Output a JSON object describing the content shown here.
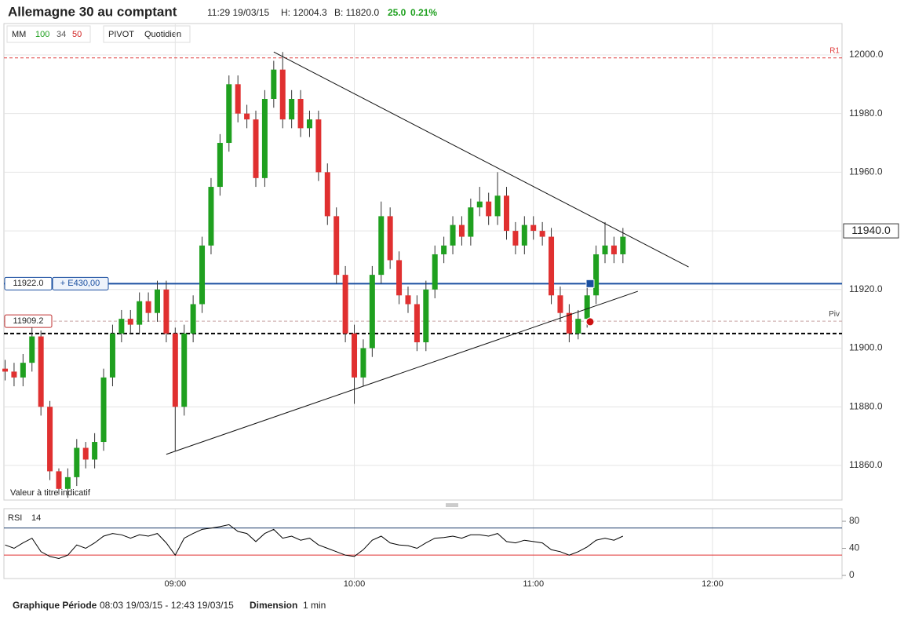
{
  "header": {
    "title": "Allemagne 30 au comptant",
    "time": "11:29 19/03/15",
    "high": "H: 12004.3",
    "bid": "B: 11820.0",
    "change": "25.0",
    "change_pct": "0.21%",
    "change_color": "#1fa01f"
  },
  "legend": {
    "mm": "MM",
    "mm_periods": [
      {
        "text": "100",
        "color": "#1fa01f"
      },
      {
        "text": "34",
        "color": "#555555"
      },
      {
        "text": "50",
        "color": "#d02020"
      }
    ],
    "pivot": "PIVOT",
    "pivot_period": "Quotidien"
  },
  "note": "Valeur à titre indicatif",
  "footer": {
    "period_label": "Graphique Période",
    "period": "08:03 19/03/15 - 12:43 19/03/15",
    "dimension_label": "Dimension",
    "dimension": "1 min"
  },
  "chart_data": [
    {
      "type": "candlestick",
      "up_color": "#1fa01f",
      "down_color": "#e03030",
      "x": [
        483,
        486,
        489,
        492,
        495,
        498,
        501,
        504,
        507,
        510,
        513,
        516,
        519,
        522,
        525,
        528,
        531,
        534,
        537,
        540,
        543,
        546,
        549,
        552,
        555,
        558,
        561,
        564,
        567,
        570,
        573,
        576,
        579,
        582,
        585,
        588,
        591,
        594,
        597,
        600,
        603,
        606,
        609,
        612,
        615,
        618,
        621,
        624,
        627,
        630,
        633,
        636,
        639,
        642,
        645,
        648,
        651,
        654,
        657,
        660,
        663,
        666,
        669,
        672,
        675,
        678,
        681,
        684,
        687,
        690
      ],
      "open": [
        11893,
        11892,
        11890,
        11895,
        11904,
        11880,
        11858,
        11852,
        11856,
        11866,
        11862,
        11868,
        11890,
        11905,
        11910,
        11908,
        11916,
        11912,
        11920,
        11905,
        11880,
        11905,
        11915,
        11935,
        11955,
        11970,
        11990,
        11980,
        11978,
        11958,
        11985,
        11995,
        11978,
        11985,
        11975,
        11978,
        11960,
        11945,
        11925,
        11905,
        11890,
        11900,
        11925,
        11945,
        11930,
        11918,
        11915,
        11902,
        11920,
        11932,
        11935,
        11942,
        11938,
        11948,
        11950,
        11945,
        11952,
        11940,
        11935,
        11942,
        11940,
        11938,
        11918,
        11912,
        11905,
        11910,
        11918,
        11932,
        11935,
        11932
      ],
      "high": [
        11896,
        11895,
        11898,
        11907,
        11906,
        11882,
        11859,
        11859,
        11869,
        11868,
        11871,
        11893,
        11908,
        11913,
        11913,
        11919,
        11919,
        11923,
        11923,
        11907,
        11908,
        11918,
        11938,
        11958,
        11973,
        11993,
        11993,
        11983,
        11981,
        11988,
        11998,
        12001,
        11988,
        11988,
        11981,
        11981,
        11963,
        11948,
        11928,
        11908,
        11903,
        11928,
        11950,
        11948,
        11933,
        11921,
        11918,
        11923,
        11935,
        11938,
        11945,
        11945,
        11951,
        11955,
        11953,
        11960,
        11955,
        11943,
        11945,
        11945,
        11943,
        11941,
        11921,
        11915,
        11913,
        11921,
        11935,
        11943,
        11938,
        11941
      ],
      "low": [
        11889,
        11887,
        11887,
        11892,
        11877,
        11855,
        11850,
        11849,
        11853,
        11859,
        11859,
        11865,
        11887,
        11902,
        11905,
        11905,
        11909,
        11909,
        11902,
        11865,
        11877,
        11902,
        11912,
        11932,
        11952,
        11967,
        11977,
        11975,
        11955,
        11955,
        11982,
        11975,
        11975,
        11972,
        11972,
        11957,
        11942,
        11922,
        11902,
        11881,
        11887,
        11897,
        11922,
        11927,
        11915,
        11912,
        11899,
        11899,
        11917,
        11929,
        11932,
        11935,
        11935,
        11945,
        11942,
        11942,
        11937,
        11932,
        11932,
        11937,
        11935,
        11915,
        11909,
        11902,
        11903,
        11907,
        11915,
        11929,
        11929,
        11929
      ],
      "close": [
        11892,
        11890,
        11895,
        11904,
        11880,
        11858,
        11852,
        11856,
        11866,
        11862,
        11868,
        11890,
        11905,
        11910,
        11908,
        11916,
        11912,
        11920,
        11905,
        11880,
        11905,
        11915,
        11935,
        11955,
        11970,
        11990,
        11980,
        11978,
        11958,
        11985,
        11995,
        11978,
        11985,
        11975,
        11978,
        11960,
        11945,
        11925,
        11905,
        11890,
        11900,
        11925,
        11945,
        11930,
        11918,
        11915,
        11902,
        11920,
        11932,
        11935,
        11942,
        11938,
        11948,
        11950,
        11945,
        11952,
        11940,
        11935,
        11942,
        11940,
        11938,
        11918,
        11912,
        11905,
        11910,
        11918,
        11932,
        11935,
        11932,
        11938
      ],
      "xlim": [
        482.6,
        763.4
      ],
      "ylim": [
        11848.2,
        12010.7
      ],
      "xticks": [
        {
          "value": 540,
          "label": "09:00"
        },
        {
          "value": 600,
          "label": "10:00"
        },
        {
          "value": 660,
          "label": "11:00"
        },
        {
          "value": 720,
          "label": "12:00"
        }
      ],
      "yticks": [
        {
          "value": 11860,
          "label": "11860.0"
        },
        {
          "value": 11880,
          "label": "11880.0"
        },
        {
          "value": 11900,
          "label": "11900.0"
        },
        {
          "value": 11920,
          "label": "11920.0"
        },
        {
          "value": 11940,
          "label": "11940.0"
        },
        {
          "value": 11960,
          "label": "11960.0"
        },
        {
          "value": 11980,
          "label": "11980.0"
        },
        {
          "value": 12000,
          "label": "12000.0"
        }
      ],
      "grid": true,
      "levels": [
        {
          "name": "R1",
          "value": 11999,
          "color": "#e04040",
          "style": "dashed"
        },
        {
          "value": 11922,
          "label": "11922.0",
          "tag": "+ E430,00",
          "color": "#1a4fa0",
          "style": "solid"
        },
        {
          "name": "Piv",
          "value": 11909.2,
          "label": "11909.2",
          "color": "#c8a0a0",
          "style": "dashed"
        },
        {
          "value": 11905,
          "color": "#000000",
          "style": "dashed"
        }
      ],
      "last_price": {
        "value": 11940,
        "label": "11940.0"
      },
      "trendlines": [
        {
          "x": [
            573,
            712
          ],
          "y": [
            12001,
            11927.7
          ]
        },
        {
          "x": [
            537,
            695
          ],
          "y": [
            11863.8,
            11919.4
          ]
        }
      ],
      "markers": [
        {
          "x": 679,
          "y": 11922,
          "shape": "square",
          "color": "#1a4fa0"
        },
        {
          "x": 679,
          "y": 11909,
          "shape": "circle",
          "color": "#cc1111"
        }
      ]
    },
    {
      "type": "line",
      "title": "RSI",
      "period": "14",
      "color": "#000000",
      "x": [
        483,
        486,
        489,
        492,
        495,
        498,
        501,
        504,
        507,
        510,
        513,
        516,
        519,
        522,
        525,
        528,
        531,
        534,
        537,
        540,
        543,
        546,
        549,
        552,
        555,
        558,
        561,
        564,
        567,
        570,
        573,
        576,
        579,
        582,
        585,
        588,
        591,
        594,
        597,
        600,
        603,
        606,
        609,
        612,
        615,
        618,
        621,
        624,
        627,
        630,
        633,
        636,
        639,
        642,
        645,
        648,
        651,
        654,
        657,
        660,
        663,
        666,
        669,
        672,
        675,
        678,
        681,
        684,
        687,
        690
      ],
      "values": [
        45,
        40,
        48,
        55,
        35,
        28,
        25,
        30,
        45,
        40,
        48,
        58,
        62,
        60,
        55,
        60,
        58,
        62,
        48,
        30,
        55,
        62,
        68,
        70,
        72,
        75,
        65,
        62,
        50,
        62,
        68,
        55,
        58,
        52,
        55,
        45,
        40,
        35,
        30,
        28,
        38,
        52,
        58,
        48,
        45,
        44,
        40,
        48,
        55,
        56,
        58,
        55,
        60,
        60,
        58,
        62,
        50,
        48,
        52,
        50,
        48,
        38,
        35,
        30,
        35,
        42,
        52,
        55,
        52,
        58
      ],
      "xlim": [
        482.6,
        763.4
      ],
      "ylim": [
        -4.6,
        98.6
      ],
      "yticks": [
        0,
        40,
        80
      ],
      "levels": [
        {
          "value": 70,
          "color": "#1a3a6a"
        },
        {
          "value": 30,
          "color": "#e03030"
        }
      ]
    }
  ]
}
